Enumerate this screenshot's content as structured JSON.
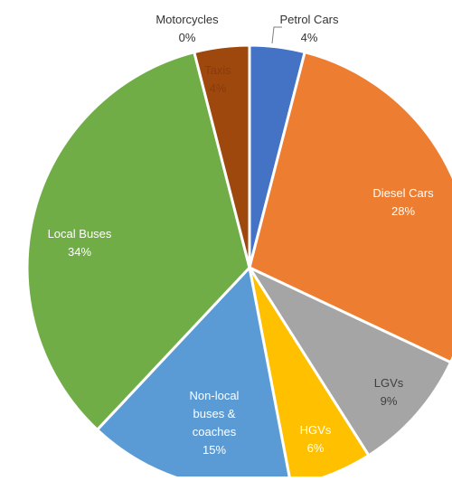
{
  "chart_data": {
    "type": "pie",
    "title": "",
    "slices": [
      {
        "label": "Petrol Cars",
        "value": 4,
        "value_label": "4%",
        "color": "#4472c4"
      },
      {
        "label": "Diesel Cars",
        "value": 28,
        "value_label": "28%",
        "color": "#ed7d31"
      },
      {
        "label": "LGVs",
        "value": 9,
        "value_label": "9%",
        "color": "#a5a5a5"
      },
      {
        "label": "HGVs",
        "value": 6,
        "value_label": "6%",
        "color": "#ffc000"
      },
      {
        "label": "Non-local buses & coaches",
        "value": 15,
        "value_label": "15%",
        "color": "#5b9bd5"
      },
      {
        "label": "Local Buses",
        "value": 34,
        "value_label": "34%",
        "color": "#70ad47"
      },
      {
        "label": "Motorcycles",
        "value": 0,
        "value_label": "0%",
        "color": "#264478"
      },
      {
        "label": "Taxis",
        "value": 4,
        "value_label": "4%",
        "color": "#9e480e"
      }
    ]
  }
}
